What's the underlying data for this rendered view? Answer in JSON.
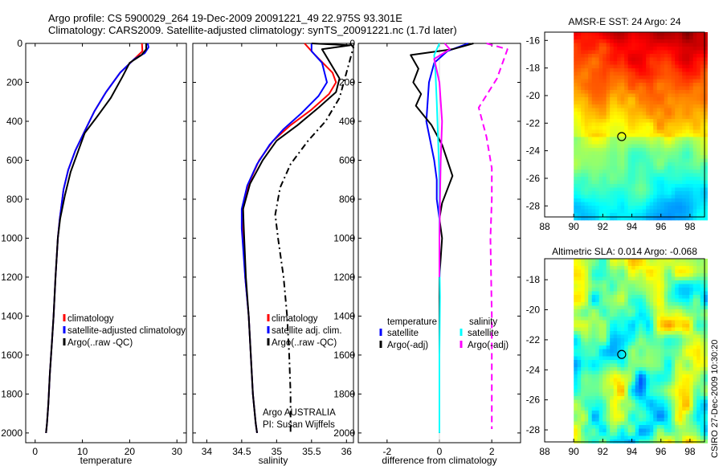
{
  "header": {
    "line1": "Argo profile: CS 5900029_264 19-Dec-2009 20091221_49 22.975S 93.301E",
    "line2": "Climatology: CARS2009. Satellite-adjusted climatology: synTS_20091221.nc (1.7d later)"
  },
  "side_label": "CSIRO 27-Dec-2009 10:30:20",
  "colors": {
    "climatology": "#ff0000",
    "satellite": "#0000ff",
    "argo": "#000000",
    "salinity_satellite": "#00ffff",
    "salinity_argo": "#ff00ff"
  },
  "chart_data": [
    {
      "id": "temperature",
      "type": "line",
      "xlabel": "temperature",
      "ylabel": "",
      "xlim": [
        -2,
        32
      ],
      "ylim": [
        0,
        2050
      ],
      "y_inverted": true,
      "xticks": [
        0,
        10,
        20,
        30
      ],
      "yticks": [
        0,
        200,
        400,
        600,
        800,
        1000,
        1200,
        1400,
        1600,
        1800,
        2000
      ],
      "series": [
        {
          "name": "climatology",
          "color": "#ff0000",
          "dash": "solid",
          "x": [
            22.6,
            22.7,
            21,
            18,
            15,
            12.5,
            10.5,
            8.5,
            7,
            6,
            5.2,
            4.8,
            4.3,
            3.9,
            3.5,
            3.1,
            2.8,
            2.5,
            2.3
          ],
          "y": [
            0,
            40,
            80,
            150,
            250,
            350,
            450,
            550,
            650,
            750,
            900,
            1000,
            1200,
            1400,
            1550,
            1700,
            1850,
            1950,
            2000
          ]
        },
        {
          "name": "satellite-adjusted climatology",
          "color": "#0000ff",
          "dash": "solid",
          "x": [
            23.8,
            24,
            23.2,
            21,
            18,
            15,
            12.5,
            10.5,
            8.5,
            7,
            6,
            5.2,
            4.8,
            4.3,
            3.9,
            3.5,
            3.1,
            2.8,
            2.5,
            2.3
          ],
          "y": [
            0,
            20,
            50,
            80,
            150,
            250,
            350,
            450,
            550,
            650,
            750,
            900,
            1000,
            1200,
            1400,
            1550,
            1700,
            1850,
            1950,
            2000
          ]
        },
        {
          "name": "Argo(..raw -QC)",
          "color": "#000000",
          "dash": "solid",
          "x": [
            23.5,
            23.5,
            22.5,
            20,
            18.5,
            16,
            13,
            10.5,
            9,
            7.5,
            6.3,
            5.3,
            4.8,
            4.3,
            3.9,
            3.5,
            3.1,
            2.8,
            2.5,
            2.3
          ],
          "y": [
            0,
            30,
            60,
            100,
            170,
            280,
            380,
            460,
            560,
            660,
            780,
            900,
            1000,
            1200,
            1400,
            1550,
            1700,
            1850,
            1950,
            2000
          ]
        }
      ],
      "legend": {
        "entries": [
          "climatology",
          "satellite-adjusted climatology",
          "Argo(..raw -QC)"
        ]
      }
    },
    {
      "id": "salinity",
      "type": "line",
      "xlabel": "salinity",
      "ylabel": "",
      "xlim": [
        33.8,
        36.1
      ],
      "ylim": [
        0,
        2050
      ],
      "y_inverted": true,
      "xticks": [
        34,
        34.5,
        35,
        35.5,
        36
      ],
      "yticks": [
        0,
        200,
        400,
        600,
        800,
        1000,
        1200,
        1400,
        1600,
        1800,
        2000
      ],
      "series": [
        {
          "name": "climatology",
          "color": "#ff0000",
          "dash": "solid",
          "x": [
            35.4,
            35.55,
            35.8,
            35.85,
            35.75,
            35.5,
            35.2,
            34.95,
            34.75,
            34.6,
            34.52,
            34.52,
            34.55,
            34.6,
            34.63,
            34.66,
            34.7,
            34.72
          ],
          "y": [
            0,
            60,
            150,
            200,
            260,
            340,
            420,
            500,
            600,
            720,
            850,
            950,
            1200,
            1400,
            1600,
            1800,
            1950,
            2000
          ]
        },
        {
          "name": "satellite adj. clim.",
          "color": "#0000ff",
          "dash": "solid",
          "x": [
            35.5,
            35.5,
            35.65,
            35.72,
            35.6,
            35.35,
            35.1,
            34.9,
            34.72,
            34.58,
            34.5,
            34.5,
            34.55,
            34.6,
            34.63,
            34.66,
            34.7,
            34.72
          ],
          "y": [
            0,
            40,
            100,
            200,
            270,
            360,
            440,
            520,
            620,
            730,
            850,
            950,
            1200,
            1400,
            1600,
            1800,
            1950,
            2000
          ]
        },
        {
          "name": "Argo(..raw -QC)",
          "color": "#000000",
          "dash": "solid",
          "x": [
            35.5,
            36.05,
            35.65,
            35.9,
            35.85,
            35.6,
            35.3,
            35,
            34.8,
            34.62,
            34.52,
            34.53,
            34.56,
            34.6,
            34.63,
            34.66,
            34.7,
            34.72
          ],
          "y": [
            0,
            10,
            30,
            180,
            250,
            330,
            420,
            500,
            600,
            720,
            850,
            950,
            1200,
            1400,
            1600,
            1800,
            1950,
            2000
          ]
        },
        {
          "name": "Argo dash-dot",
          "color": "#000000",
          "dash": "dashdot",
          "x": [
            36.05,
            36.1,
            35.9,
            35.7,
            35.45,
            35.2,
            35.05,
            34.98,
            35.02,
            35.1,
            35.15,
            35.18,
            35.2,
            35.2
          ],
          "y": [
            0,
            20,
            280,
            400,
            500,
            620,
            740,
            880,
            1000,
            1200,
            1400,
            1600,
            1800,
            2000
          ]
        }
      ],
      "legend": {
        "entries": [
          "climatology",
          "satellite adj. clim.",
          "Argo(..raw -QC)"
        ]
      },
      "annotations": [
        "Argo AUSTRALIA",
        "PI: Susan Wijffels"
      ]
    },
    {
      "id": "difference",
      "type": "line",
      "xlabel": "difference from climatology",
      "ylabel": "",
      "xlim": [
        -3.1,
        3.1
      ],
      "ylim": [
        0,
        2050
      ],
      "y_inverted": true,
      "xticks": [
        -2,
        0,
        2
      ],
      "yticks": [
        0,
        200,
        400,
        600,
        800,
        1000,
        1200,
        1400,
        1600,
        1800,
        2000
      ],
      "series": [
        {
          "name": "temperature satellite",
          "color": "#0000ff",
          "dash": "solid",
          "x": [
            1.1,
            0.3,
            -0.2,
            -0.4,
            -0.5,
            -0.35,
            -0.2,
            -0.1,
            -0.1,
            0,
            0,
            0
          ],
          "y": [
            0,
            40,
            100,
            200,
            400,
            500,
            600,
            700,
            800,
            900,
            1000,
            1100
          ]
        },
        {
          "name": "temperature Argo(-adj)",
          "color": "#000000",
          "dash": "solid",
          "x": [
            1.3,
            0.5,
            -1.1,
            -0.8,
            -1.0,
            -0.7,
            -0.9,
            -0.3,
            0.1,
            0.3,
            0.5,
            0.3,
            0.1,
            0,
            0.1,
            0,
            0,
            0
          ],
          "y": [
            0,
            30,
            60,
            130,
            200,
            260,
            320,
            420,
            520,
            600,
            680,
            750,
            820,
            900,
            1000,
            1200,
            1500,
            2000
          ]
        },
        {
          "name": "salinity satellite",
          "color": "#00ffff",
          "dash": "solid",
          "x": [
            0,
            -0.2,
            -0.15,
            -0.1,
            -0.05,
            0,
            0,
            0,
            0.02,
            0,
            0
          ],
          "y": [
            0,
            60,
            150,
            300,
            500,
            700,
            900,
            1100,
            1300,
            1600,
            2000
          ]
        },
        {
          "name": "salinity Argo(-adj)",
          "color": "#ff00ff",
          "dash": "solid",
          "x": [
            0.2,
            0.4,
            -0.2,
            0,
            0.1,
            0.05,
            0.02,
            0,
            0
          ],
          "y": [
            0,
            30,
            80,
            200,
            400,
            600,
            800,
            1000,
            1200
          ]
        },
        {
          "name": "salinity Argo dash",
          "color": "#ff00ff",
          "dash": "dashed",
          "x": [
            1.8,
            2.6,
            2.2,
            1.5,
            1.8,
            2.0,
            2.0,
            1.95,
            2.0,
            2.0,
            2.0
          ],
          "y": [
            0,
            30,
            180,
            330,
            480,
            640,
            800,
            1000,
            1400,
            1800,
            1980
          ]
        }
      ],
      "legend": {
        "temperature_heading": "temperature",
        "salinity_heading": "salinity",
        "entries": [
          "satellite",
          "Argo(-adj)",
          "satellite",
          "Argo(-adj)"
        ]
      }
    },
    {
      "id": "sst_map",
      "type": "heatmap",
      "title": "AMSR-E SST: 24 Argo: 24",
      "xlim": [
        88,
        99
      ],
      "ylim": [
        -28.8,
        -15.4
      ],
      "xticks": [
        88,
        90,
        92,
        94,
        96,
        98
      ],
      "yticks": [
        -16,
        -18,
        -20,
        -22,
        -24,
        -26,
        -28
      ],
      "marker": {
        "lon": 93.3,
        "lat": -22.975
      },
      "data_extent_lon": [
        90,
        99
      ]
    },
    {
      "id": "sla_map",
      "type": "heatmap",
      "title": "Altimetric SLA: 0.014 Argo: -0.068",
      "xlim": [
        88,
        99
      ],
      "ylim": [
        -28.8,
        -16.6
      ],
      "xticks": [
        88,
        90,
        92,
        94,
        96,
        98
      ],
      "yticks": [
        -18,
        -20,
        -22,
        -24,
        -26,
        -28
      ],
      "marker": {
        "lon": 93.3,
        "lat": -22.975
      },
      "data_extent_lon": [
        90,
        99
      ]
    }
  ]
}
